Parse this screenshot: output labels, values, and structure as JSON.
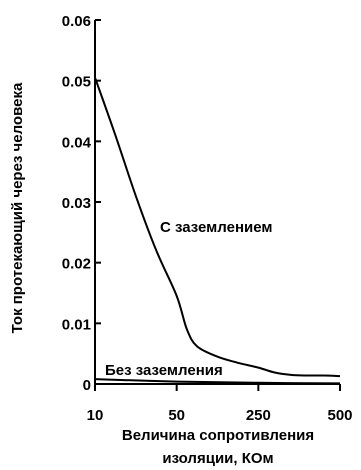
{
  "chart_data": {
    "type": "line",
    "title": "",
    "xlabel_line1": "Величина сопротивления",
    "xlabel_line2": "изоляции, КОм",
    "ylabel": "Ток протекающий через человека",
    "categories": [
      "10",
      "50",
      "250",
      "500"
    ],
    "x_values": [
      10,
      50,
      250,
      500
    ],
    "x_scale": "categorical-evenly-spaced",
    "ylim": [
      0,
      0.06
    ],
    "yticks": [
      0,
      0.01,
      0.02,
      0.03,
      0.04,
      0.05,
      0.06
    ],
    "ytick_labels": [
      "0",
      "0.01",
      "0.02",
      "0.03",
      "0.04",
      "0.05",
      "0.06"
    ],
    "grid": false,
    "legend": "none",
    "series": [
      {
        "name": "С заземлением",
        "x": [
          10,
          20,
          30,
          40,
          50,
          75,
          100,
          150,
          200,
          250,
          300,
          350,
          400,
          450,
          500
        ],
        "y": [
          0.0505,
          0.041,
          0.031,
          0.022,
          0.0145,
          0.009,
          0.0062,
          0.0045,
          0.0035,
          0.0027,
          0.0019,
          0.0015,
          0.0014,
          0.0014,
          0.0013
        ],
        "color": "#000000"
      },
      {
        "name": "Без заземления",
        "x": [
          10,
          50,
          250,
          500
        ],
        "y": [
          0.0008,
          0.0004,
          0.0002,
          0.0001
        ],
        "color": "#000000"
      }
    ]
  }
}
